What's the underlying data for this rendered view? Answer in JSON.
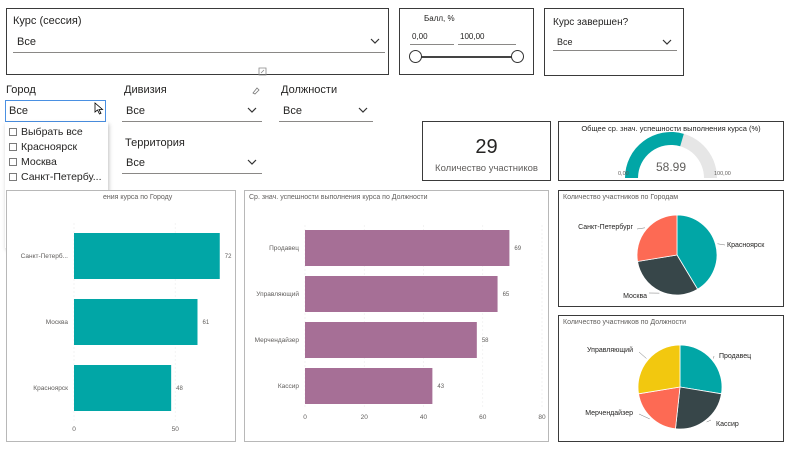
{
  "filters": {
    "course": {
      "label": "Курс (сессия)",
      "value": "Все"
    },
    "score": {
      "label": "Балл, %",
      "min": "0,00",
      "max": "100,00",
      "slider_from": 0,
      "slider_to": 1
    },
    "completed": {
      "label": "Курс завершен?",
      "value": "Все"
    },
    "city": {
      "label": "Город",
      "value": "Все",
      "options": [
        "Выбрать все",
        "Красноярск",
        "Москва",
        "Санкт-Петербу..."
      ]
    },
    "division": {
      "label": "Дивизия",
      "value": "Все"
    },
    "positions": {
      "label": "Должности",
      "value": "Все"
    },
    "territory": {
      "label": "Территория",
      "value": "Все"
    }
  },
  "kpi": {
    "value": "29",
    "label": "Количество участников"
  },
  "gauge": {
    "title": "Общее ср. знач. успешности выполнения курса (%)",
    "value_label": "58.99",
    "value": 58.99,
    "min_label": "0,00",
    "max_label": "100,00",
    "min": 0,
    "max": 100
  },
  "chart_data": [
    {
      "type": "bar",
      "title": "Ср. знач. успешности выполнения курса по Городу",
      "title_visible": "ения курса по Городу",
      "categories": [
        "Санкт-Петербург",
        "Москва",
        "Красноярск"
      ],
      "category_labels": [
        "Санкт-Петерб...",
        "Москва",
        "Красноярск"
      ],
      "values": [
        72,
        61,
        48
      ],
      "xticks": [
        "0",
        "50"
      ],
      "xlim": [
        0,
        82
      ],
      "color": "#01a6a6"
    },
    {
      "type": "bar",
      "title": "Ср. знач. успешности выполнения курса по Должности",
      "categories": [
        "Продавец",
        "Управляющий",
        "Мерчендайзер",
        "Кассир"
      ],
      "values": [
        69,
        65,
        58,
        43
      ],
      "xticks": [
        "0",
        "20",
        "40",
        "60",
        "80"
      ],
      "xlim": [
        0,
        80
      ],
      "color": "#a66f96"
    },
    {
      "type": "pie",
      "title": "Количество участников по Городам",
      "labels": [
        "Красноярск",
        "Москва",
        "Санкт-Петербург"
      ],
      "values": [
        12,
        9,
        8
      ],
      "colors": [
        "#01a6a6",
        "#374649",
        "#fd6a54"
      ]
    },
    {
      "type": "pie",
      "title": "Количество участников по Должности",
      "labels": [
        "Продавец",
        "Кассир",
        "Мерчендайзер",
        "Управляющий"
      ],
      "values": [
        8,
        7,
        6,
        8
      ],
      "colors": [
        "#01a6a6",
        "#374649",
        "#fd6a54",
        "#f2c80f"
      ]
    }
  ]
}
